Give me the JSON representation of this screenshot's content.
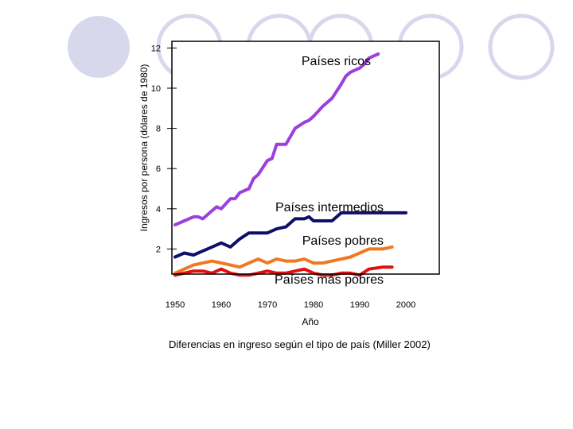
{
  "chart_data": {
    "type": "line",
    "title": "",
    "xlabel": "Año",
    "ylabel": "Ingresos por persona (dólares de 1980)",
    "xlim": [
      1950,
      2005
    ],
    "ylim": [
      0,
      12
    ],
    "xticks": [
      "1950",
      "1960",
      "1970",
      "1980",
      "1990",
      "2000"
    ],
    "yticks": [
      "2",
      "4",
      "6",
      "8",
      "10",
      "12"
    ],
    "grid": false,
    "legend": "inline labels",
    "series": [
      {
        "name": "Países ricos",
        "color": "#9b3fe0",
        "x": [
          1950,
          1952,
          1954,
          1955,
          1956,
          1958,
          1959,
          1960,
          1962,
          1963,
          1964,
          1966,
          1967,
          1968,
          1970,
          1971,
          1972,
          1974,
          1975,
          1976,
          1978,
          1979,
          1980,
          1982,
          1983,
          1984,
          1986,
          1987,
          1988,
          1990,
          1991,
          1992,
          1994
        ],
        "y": [
          3.2,
          3.4,
          3.6,
          3.6,
          3.5,
          3.9,
          4.1,
          4.0,
          4.5,
          4.5,
          4.8,
          5.0,
          5.5,
          5.7,
          6.4,
          6.5,
          7.2,
          7.2,
          7.6,
          8.0,
          8.3,
          8.4,
          8.6,
          9.1,
          9.3,
          9.5,
          10.2,
          10.6,
          10.8,
          11.0,
          11.2,
          11.5,
          11.7
        ]
      },
      {
        "name": "Países intermedios",
        "color": "#0f0f6b",
        "x": [
          1950,
          1952,
          1954,
          1956,
          1958,
          1960,
          1962,
          1964,
          1966,
          1968,
          1970,
          1972,
          1974,
          1976,
          1978,
          1979,
          1980,
          1982,
          1984,
          1986,
          1988,
          1990,
          1995,
          2000
        ],
        "y": [
          1.6,
          1.8,
          1.7,
          1.9,
          2.1,
          2.3,
          2.1,
          2.5,
          2.8,
          2.8,
          2.8,
          3.0,
          3.1,
          3.5,
          3.5,
          3.6,
          3.4,
          3.4,
          3.4,
          3.8,
          3.8,
          3.8,
          3.8,
          3.8
        ]
      },
      {
        "name": "Países pobres",
        "color": "#f07820",
        "x": [
          1950,
          1952,
          1954,
          1956,
          1958,
          1960,
          1962,
          1964,
          1966,
          1968,
          1970,
          1972,
          1974,
          1976,
          1978,
          1980,
          1982,
          1984,
          1986,
          1988,
          1990,
          1992,
          1995,
          1997
        ],
        "y": [
          0.8,
          1.0,
          1.2,
          1.3,
          1.4,
          1.3,
          1.2,
          1.1,
          1.3,
          1.5,
          1.3,
          1.5,
          1.4,
          1.4,
          1.5,
          1.3,
          1.3,
          1.4,
          1.5,
          1.6,
          1.8,
          2.0,
          2.0,
          2.1
        ]
      },
      {
        "name": "Países más pobres",
        "color": "#e01010",
        "x": [
          1950,
          1952,
          1954,
          1956,
          1958,
          1960,
          1962,
          1964,
          1966,
          1968,
          1970,
          1972,
          1974,
          1976,
          1978,
          1980,
          1982,
          1984,
          1986,
          1988,
          1990,
          1992,
          1995,
          1997
        ],
        "y": [
          0.7,
          0.8,
          0.9,
          0.9,
          0.8,
          1.0,
          0.8,
          0.7,
          0.7,
          0.8,
          0.9,
          0.8,
          0.8,
          0.9,
          1.0,
          0.8,
          0.7,
          0.7,
          0.8,
          0.8,
          0.7,
          1.0,
          1.1,
          1.1
        ]
      }
    ]
  },
  "caption": "Diferencias en ingreso según el tipo de país (Miller 2002)",
  "decoration": {
    "circle_stroke": "#d4d4e8",
    "circle_fill": "#d4d4e8"
  }
}
